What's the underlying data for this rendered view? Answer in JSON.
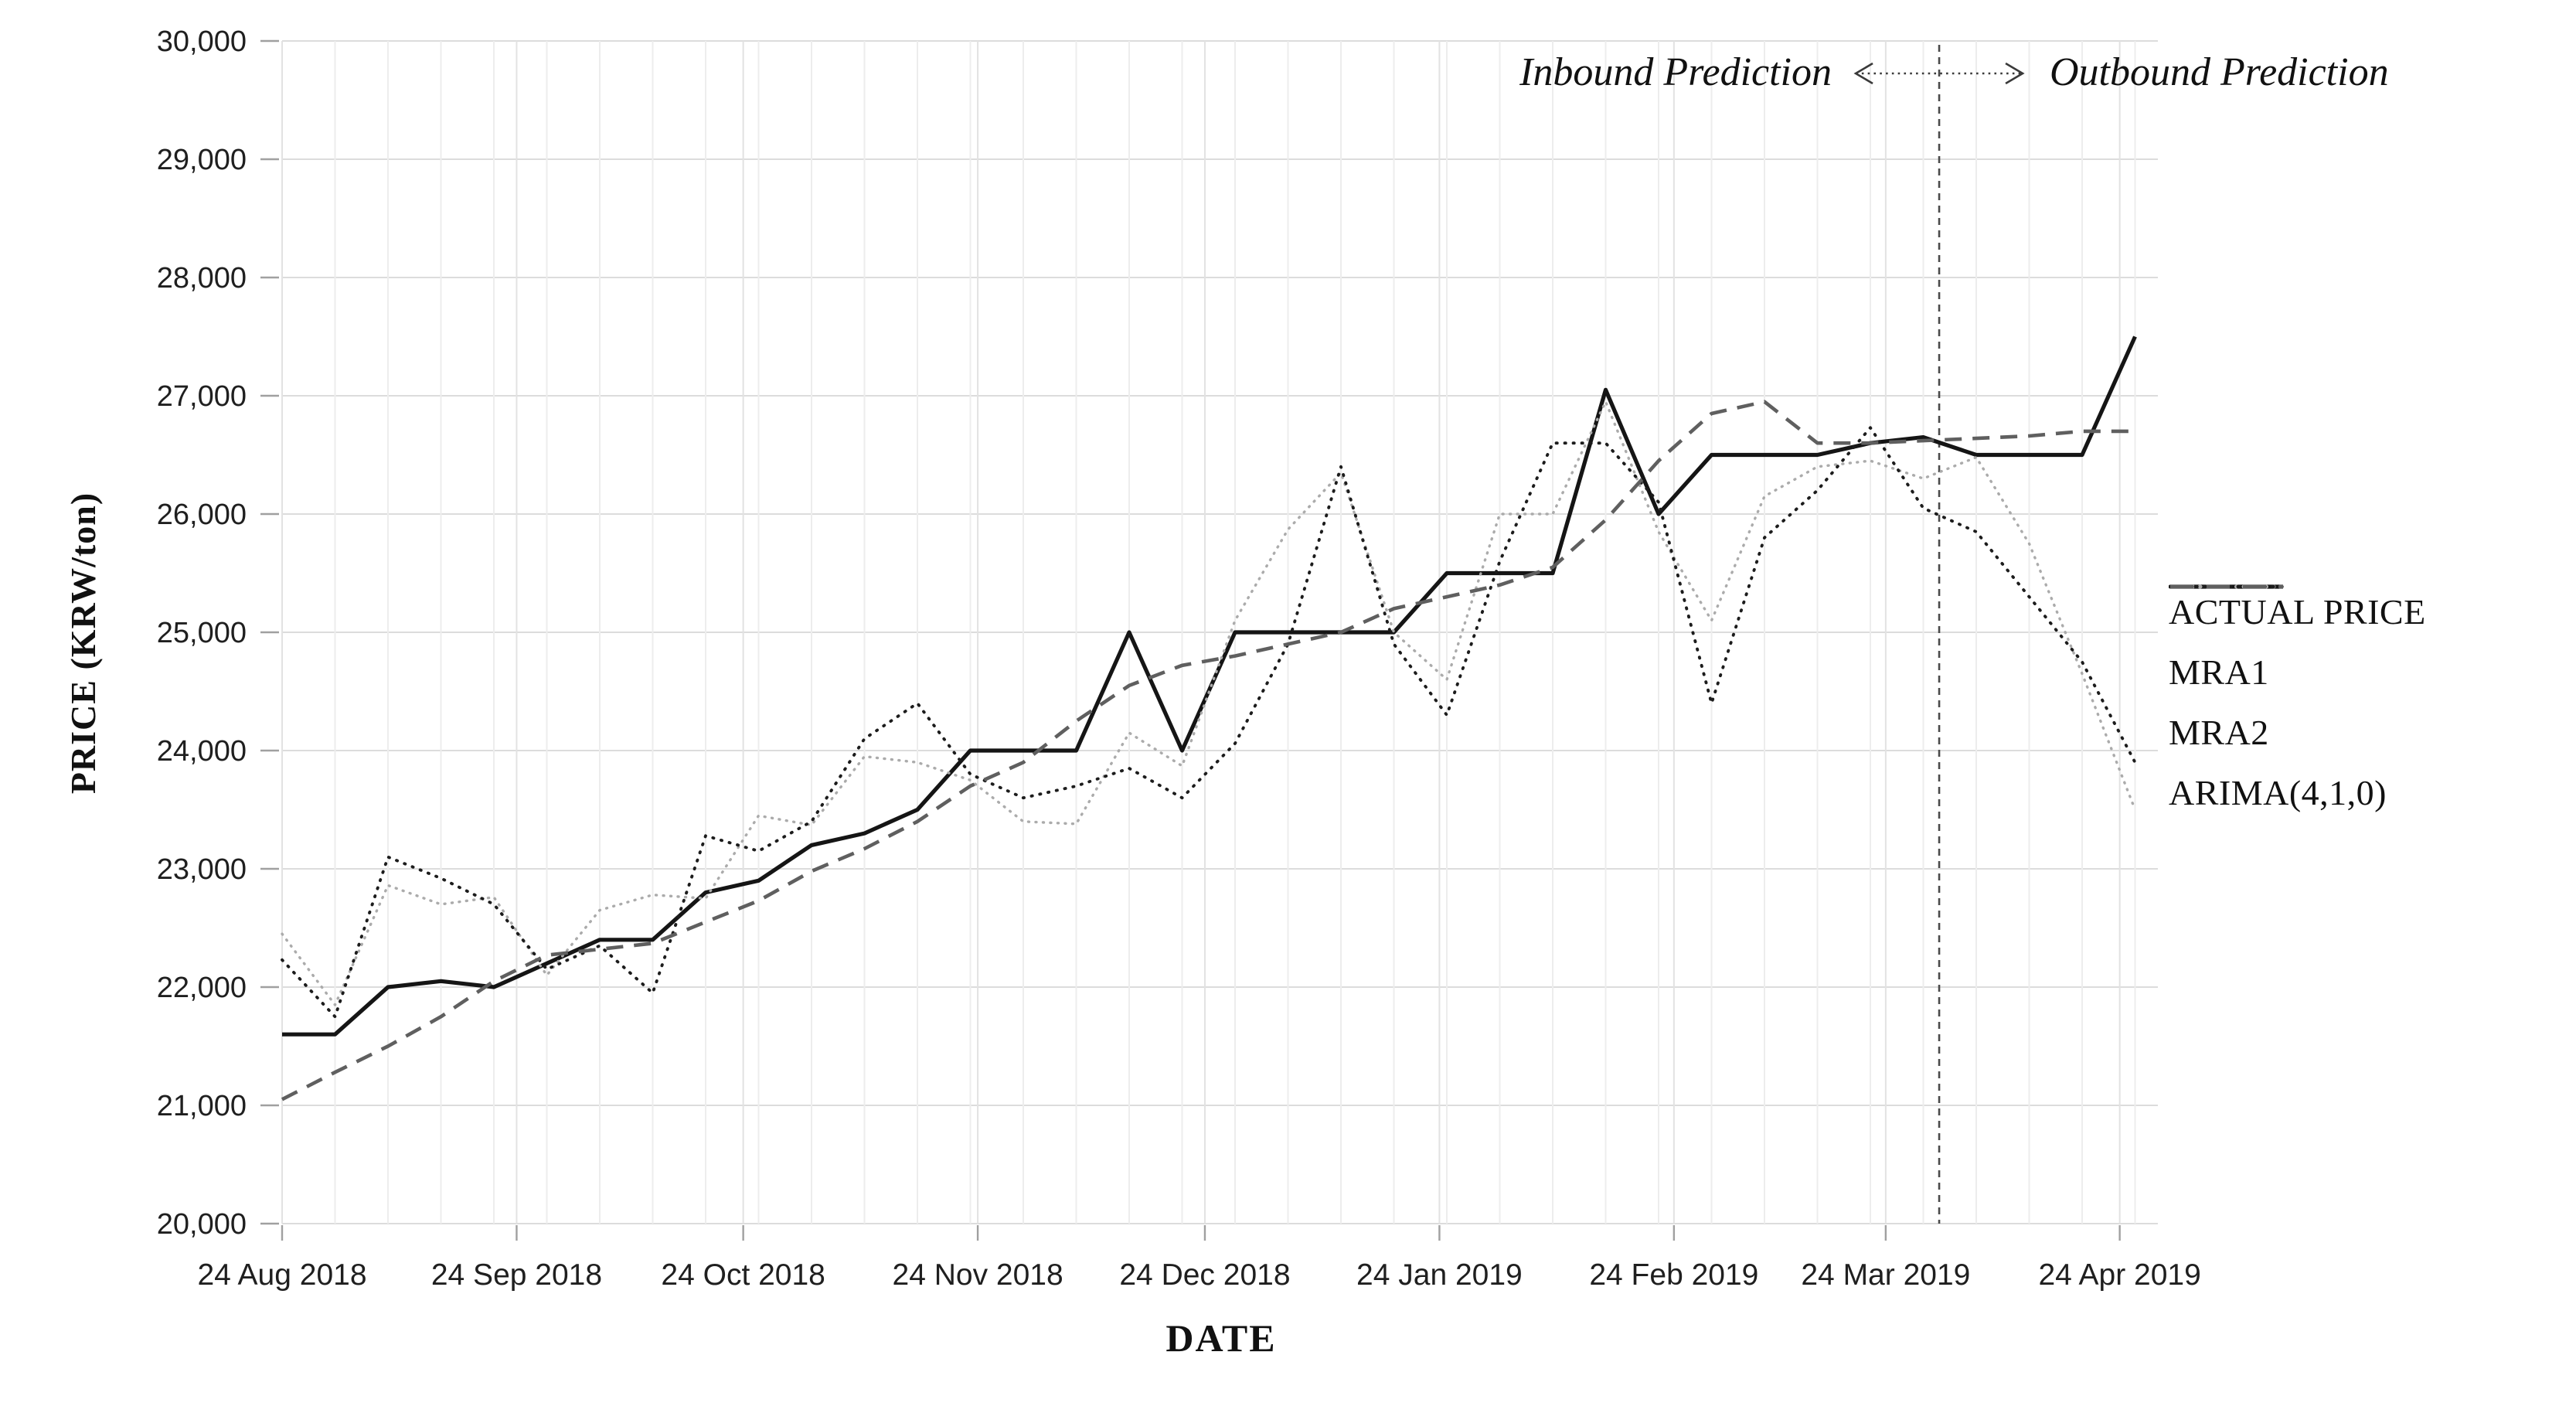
{
  "figure": {
    "y_axis_title": "PRICE (KRW/ton)",
    "x_axis_title": "DATE",
    "annotations": {
      "inbound": "Inbound Prediction",
      "outbound": "Outbound Prediction"
    }
  },
  "legend": {
    "items": [
      {
        "label": "ACTUAL PRICE",
        "series": "ACTUAL PRICE"
      },
      {
        "label": "MRA1",
        "series": "MRA1"
      },
      {
        "label": "MRA2",
        "series": "MRA2"
      },
      {
        "label": "ARIMA(4,1,0)",
        "series": "ARIMA(4,1,0)"
      }
    ]
  },
  "chart_data": {
    "type": "line",
    "title": "",
    "xlabel": "DATE",
    "ylabel": "PRICE (KRW/ton)",
    "ylim": [
      20000,
      30000
    ],
    "ytick_step": 1000,
    "ytick_labels": [
      "20,000",
      "21,000",
      "22,000",
      "23,000",
      "24,000",
      "25,000",
      "26,000",
      "27,000",
      "28,000",
      "29,000",
      "30,000"
    ],
    "grid": true,
    "legend_position": "right-outside",
    "x_unit": "weekly points, week index from 24 Aug 2018",
    "x": [
      0,
      1,
      2,
      3,
      4,
      5,
      6,
      7,
      8,
      9,
      10,
      11,
      12,
      13,
      14,
      15,
      16,
      17,
      18,
      19,
      20,
      21,
      22,
      23,
      24,
      25,
      26,
      27,
      28,
      29,
      30,
      31,
      32,
      33,
      34,
      35
    ],
    "xticks": [
      {
        "week": 0.0,
        "label": "24 Aug 2018"
      },
      {
        "week": 4.43,
        "label": "24 Sep 2018"
      },
      {
        "week": 8.71,
        "label": "24 Oct 2018"
      },
      {
        "week": 13.14,
        "label": "24 Nov 2018"
      },
      {
        "week": 17.43,
        "label": "24 Dec 2018"
      },
      {
        "week": 21.86,
        "label": "24 Jan 2019"
      },
      {
        "week": 26.29,
        "label": "24 Feb 2019"
      },
      {
        "week": 30.29,
        "label": "24 Mar 2019"
      },
      {
        "week": 34.71,
        "label": "24 Apr 2019"
      }
    ],
    "separator": {
      "week": 31.3,
      "left_label": "Inbound Prediction",
      "right_label": "Outbound Prediction"
    },
    "series": [
      {
        "name": "ACTUAL PRICE",
        "style": "solid",
        "color": "#151515",
        "values": [
          21600,
          21600,
          22000,
          22050,
          22000,
          22200,
          22400,
          22400,
          22800,
          22900,
          23200,
          23300,
          23500,
          24000,
          24000,
          24000,
          25000,
          24000,
          25000,
          25000,
          25000,
          25000,
          25500,
          25500,
          25500,
          27050,
          26000,
          26500,
          26500,
          26500,
          26600,
          26650,
          26500,
          26500,
          26500,
          27500
        ]
      },
      {
        "name": "MRA1",
        "style": "dotted-fine",
        "color": "#ababab",
        "values": [
          22450,
          21850,
          22860,
          22700,
          22760,
          22100,
          22650,
          22780,
          22750,
          23450,
          23370,
          23950,
          23900,
          23750,
          23400,
          23380,
          24150,
          23870,
          25100,
          25870,
          26350,
          25000,
          24600,
          26000,
          26000,
          26950,
          25850,
          25100,
          26150,
          26400,
          26450,
          26300,
          26480,
          25750,
          24650,
          23500
        ]
      },
      {
        "name": "MRA2",
        "style": "dotted",
        "color": "#1c1c1c",
        "values": [
          22230,
          21750,
          23100,
          22920,
          22700,
          22150,
          22350,
          21950,
          23280,
          23150,
          23400,
          24100,
          24400,
          23800,
          23600,
          23700,
          23850,
          23600,
          24060,
          24900,
          26400,
          24900,
          24300,
          25600,
          26600,
          26600,
          26100,
          24400,
          25800,
          26200,
          26730,
          26050,
          25850,
          25300,
          24750,
          23900
        ]
      },
      {
        "name": "ARIMA(4,1,0)",
        "style": "dashed",
        "color": "#5f5f5f",
        "values": [
          21050,
          21280,
          21500,
          21750,
          22050,
          22270,
          22320,
          22370,
          22550,
          22730,
          22980,
          23170,
          23400,
          23700,
          23900,
          24250,
          24550,
          24720,
          24800,
          24900,
          25000,
          25200,
          25300,
          25400,
          25550,
          25950,
          26450,
          26850,
          26950,
          26600,
          26600,
          26620,
          26640,
          26660,
          26700,
          26700
        ]
      }
    ]
  }
}
